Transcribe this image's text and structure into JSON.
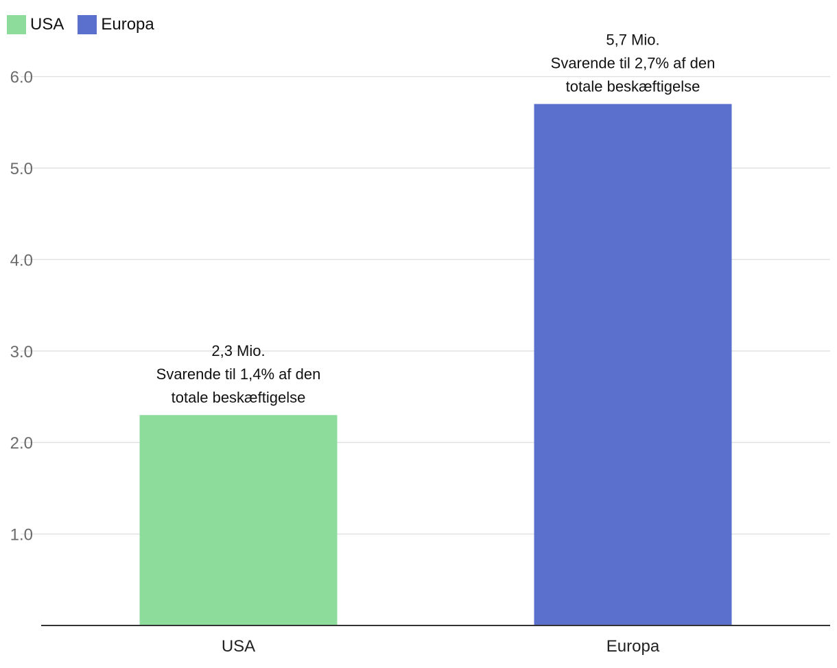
{
  "chart_data": {
    "type": "bar",
    "categories": [
      "USA",
      "Europa"
    ],
    "values": [
      2.3,
      5.7
    ],
    "colors": [
      "#8ddc9c",
      "#5b6fcd"
    ],
    "legend": {
      "placement": "top-left",
      "entries": [
        {
          "label": "USA",
          "color": "#8ddc9c"
        },
        {
          "label": "Europa",
          "color": "#5b6fcd"
        }
      ]
    },
    "data_labels": [
      [
        "2,3 Mio.",
        "Svarende til 1,4% af den",
        "totale beskæftigelse"
      ],
      [
        "5,7 Mio.",
        "Svarende til 2,7% af den",
        "totale beskæftigelse"
      ]
    ],
    "yticks": [
      1.0,
      2.0,
      3.0,
      4.0,
      5.0,
      6.0
    ],
    "ytick_labels": [
      "1.0",
      "2.0",
      "3.0",
      "4.0",
      "5.0",
      "6.0"
    ],
    "ylim": [
      0,
      6
    ],
    "grid": true,
    "title": "",
    "xlabel": "",
    "ylabel": ""
  }
}
